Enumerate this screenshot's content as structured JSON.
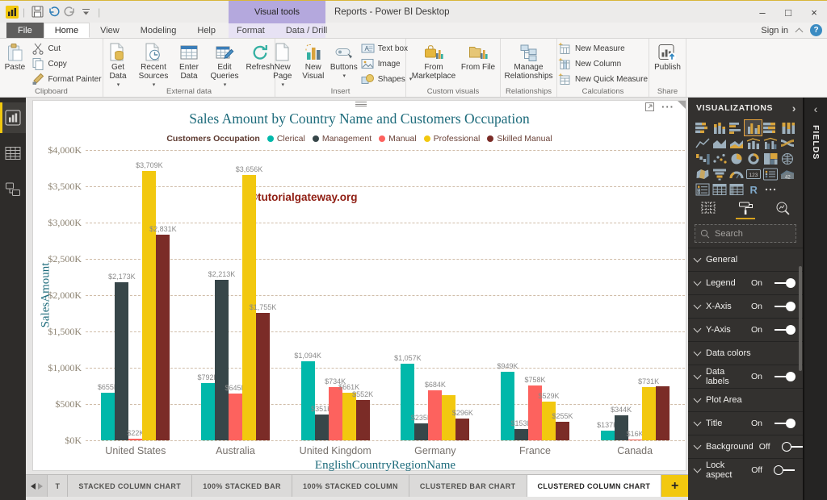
{
  "titlebar": {
    "app_title": "Reports - Power BI Desktop",
    "contextual_group_label": "Visual tools",
    "window_controls": {
      "minimize": "–",
      "maximize": "□",
      "close": "×"
    }
  },
  "ribbon": {
    "sign_in_label": "Sign in",
    "tabs": [
      {
        "label": "File",
        "style": "file"
      },
      {
        "label": "Home",
        "active": true
      },
      {
        "label": "View"
      },
      {
        "label": "Modeling"
      },
      {
        "label": "Help"
      },
      {
        "label": "Format",
        "contextual": true
      },
      {
        "label": "Data / Drill",
        "contextual": true
      }
    ],
    "groups": [
      {
        "label": "Clipboard",
        "buttons": [
          {
            "label": "Paste",
            "icon": "paste",
            "type": "large"
          },
          {
            "label": "Cut",
            "icon": "cut",
            "type": "small"
          },
          {
            "label": "Copy",
            "icon": "copy",
            "type": "small"
          },
          {
            "label": "Format Painter",
            "icon": "format-painter",
            "type": "small"
          }
        ]
      },
      {
        "label": "External data",
        "buttons": [
          {
            "label": "Get Data",
            "icon": "get-data",
            "type": "large",
            "dropdown": true
          },
          {
            "label": "Recent Sources",
            "icon": "recent-sources",
            "type": "large",
            "dropdown": true
          },
          {
            "label": "Enter Data",
            "icon": "enter-data",
            "type": "large"
          },
          {
            "label": "Edit Queries",
            "icon": "edit-queries",
            "type": "large",
            "dropdown": true
          },
          {
            "label": "Refresh",
            "icon": "refresh",
            "type": "large"
          }
        ]
      },
      {
        "label": "Insert",
        "buttons": [
          {
            "label": "New Page",
            "icon": "new-page",
            "type": "large",
            "dropdown": true
          },
          {
            "label": "New Visual",
            "icon": "new-visual",
            "type": "large"
          },
          {
            "label": "Buttons",
            "icon": "buttons",
            "type": "large",
            "dropdown": true
          },
          {
            "label": "Text box",
            "icon": "text-box",
            "type": "small"
          },
          {
            "label": "Image",
            "icon": "image",
            "type": "small"
          },
          {
            "label": "Shapes",
            "icon": "shapes",
            "type": "small",
            "dropdown": true
          }
        ]
      },
      {
        "label": "Custom visuals",
        "buttons": [
          {
            "label": "From Marketplace",
            "icon": "from-marketplace",
            "type": "large"
          },
          {
            "label": "From File",
            "icon": "from-file",
            "type": "large"
          }
        ]
      },
      {
        "label": "Relationships",
        "buttons": [
          {
            "label": "Manage Relationships",
            "icon": "manage-relationships",
            "type": "large"
          }
        ]
      },
      {
        "label": "Calculations",
        "buttons": [
          {
            "label": "New Measure",
            "icon": "new-measure",
            "type": "small"
          },
          {
            "label": "New Column",
            "icon": "new-column",
            "type": "small"
          },
          {
            "label": "New Quick Measure",
            "icon": "new-quick-measure",
            "type": "small"
          }
        ]
      },
      {
        "label": "Share",
        "buttons": [
          {
            "label": "Publish",
            "icon": "publish",
            "type": "large"
          }
        ]
      }
    ]
  },
  "sidebar": {
    "items": [
      {
        "name": "report-view",
        "active": true
      },
      {
        "name": "data-view",
        "active": false
      },
      {
        "name": "model-view",
        "active": false
      }
    ]
  },
  "chart_data": {
    "type": "bar",
    "title": "Sales Amount by Country Name and Customers Occupation",
    "legend_title": "Customers Occupation",
    "legend_position": "top",
    "watermark": "©tutorialgateway.org",
    "xlabel": "EnglishCountryRegionName",
    "ylabel": "SalesAmount",
    "ylim": [
      0,
      4000
    ],
    "grid": "dashed",
    "ytick_labels": [
      "$0K",
      "$500K",
      "$1,000K",
      "$1,500K",
      "$2,000K",
      "$2,500K",
      "$3,000K",
      "$3,500K",
      "$4,000K"
    ],
    "categories": [
      "United States",
      "Australia",
      "United Kingdom",
      "Germany",
      "France",
      "Canada"
    ],
    "series": [
      {
        "name": "Clerical",
        "color": "#01B8AA",
        "values": [
          655,
          792,
          1094,
          1057,
          949,
          137
        ],
        "labels": [
          "$655K",
          "$792K",
          "$1,094K",
          "$1,057K",
          "$949K",
          "$137K"
        ]
      },
      {
        "name": "Management",
        "color": "#374649",
        "values": [
          2173,
          2213,
          351,
          235,
          153,
          344
        ],
        "labels": [
          "$2,173K",
          "$2,213K",
          "$351K",
          "$235K",
          "$153K",
          "$344K"
        ]
      },
      {
        "name": "Manual",
        "color": "#FD625E",
        "values": [
          22,
          645,
          734,
          684,
          758,
          16
        ],
        "labels": [
          "$22K",
          "$645K",
          "$734K",
          "$684K",
          "$758K",
          "$16K"
        ]
      },
      {
        "name": "Professional",
        "color": "#F2C80F",
        "values": [
          3709,
          3656,
          661,
          620,
          529,
          731
        ],
        "labels": [
          "$3,709K",
          "$3,656K",
          "$661K",
          "",
          "$529K",
          "$731K"
        ]
      },
      {
        "name": "Skilled Manual",
        "color": "#7B2C27",
        "values": [
          2831,
          1755,
          552,
          296,
          255,
          748
        ],
        "labels": [
          "$2,831K",
          "$1,755K",
          "$552K",
          "$296K",
          "$255K",
          ""
        ]
      }
    ],
    "colors": {
      "title": "#1D6B7B",
      "gridline": "#D0BDA9",
      "data_labels": "#8A8A8A",
      "watermark": "#8F1D12"
    }
  },
  "visualizations_panel": {
    "title": "VISUALIZATIONS",
    "collapse_glyph": "›",
    "icon_names": [
      "stacked-bar-chart",
      "stacked-column-chart",
      "clustered-bar-chart",
      "clustered-column-chart",
      "100-stacked-bar-chart",
      "100-stacked-column-chart",
      "line-chart",
      "area-chart",
      "stacked-area-chart",
      "line-and-stacked-column-chart",
      "line-and-clustered-column-chart",
      "ribbon-chart",
      "waterfall-chart",
      "scatter-chart",
      "pie-chart",
      "donut-chart",
      "treemap",
      "map",
      "filled-map",
      "funnel",
      "gauge",
      "card",
      "multi-row-card",
      "kpi",
      "slicer",
      "table",
      "matrix",
      "r-script-visual",
      "more-options"
    ],
    "selected_icon": "clustered-column-chart",
    "tool_tabs": [
      "fields",
      "format",
      "analytics"
    ],
    "active_tool_tab": "format",
    "search_placeholder": "Search",
    "sections": [
      {
        "label": "General"
      },
      {
        "label": "Legend",
        "state": "On"
      },
      {
        "label": "X-Axis",
        "state": "On"
      },
      {
        "label": "Y-Axis",
        "state": "On"
      },
      {
        "label": "Data colors"
      },
      {
        "label": "Data labels",
        "state": "On"
      },
      {
        "label": "Plot Area"
      },
      {
        "label": "Title",
        "state": "On"
      },
      {
        "label": "Background",
        "state": "Off"
      },
      {
        "label": "Lock aspect",
        "state": "Off"
      }
    ]
  },
  "fields_panel": {
    "title": "FIELDS",
    "expand_glyph": "‹"
  },
  "pages_bar": {
    "tabs": [
      {
        "label": "T"
      },
      {
        "label": "STACKED COLUMN CHART"
      },
      {
        "label": "100% STACKED BAR"
      },
      {
        "label": "100% STACKED COLUMN"
      },
      {
        "label": "CLUSTERED BAR CHART"
      },
      {
        "label": "CLUSTERED COLUMN CHART",
        "active": true
      }
    ],
    "add_page_label": "+"
  }
}
